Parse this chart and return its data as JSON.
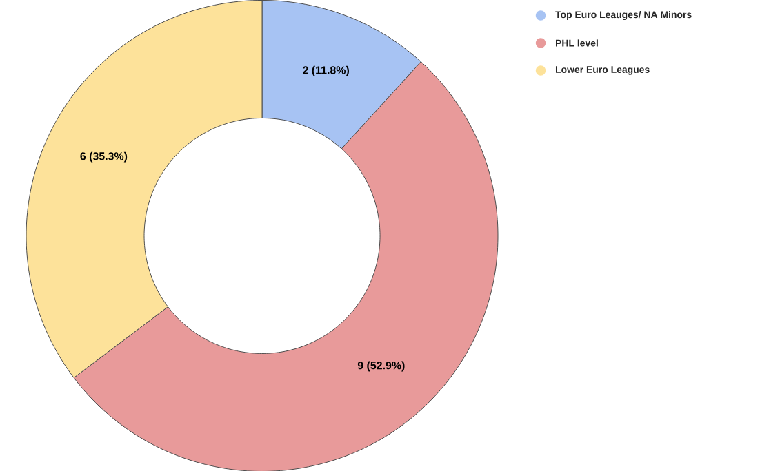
{
  "chart_data": {
    "type": "donut",
    "categories": [
      "Top Euro Leauges/ NA Minors",
      "PHL level",
      "Lower Euro Leagues"
    ],
    "values": [
      2,
      9,
      6
    ],
    "colors": [
      "#a7c3f3",
      "#e89a9a",
      "#fde29a"
    ],
    "value_labels": [
      "2 (11.8%)",
      "9 (52.9%)",
      "6 (35.3%)"
    ],
    "legend": "top right"
  }
}
